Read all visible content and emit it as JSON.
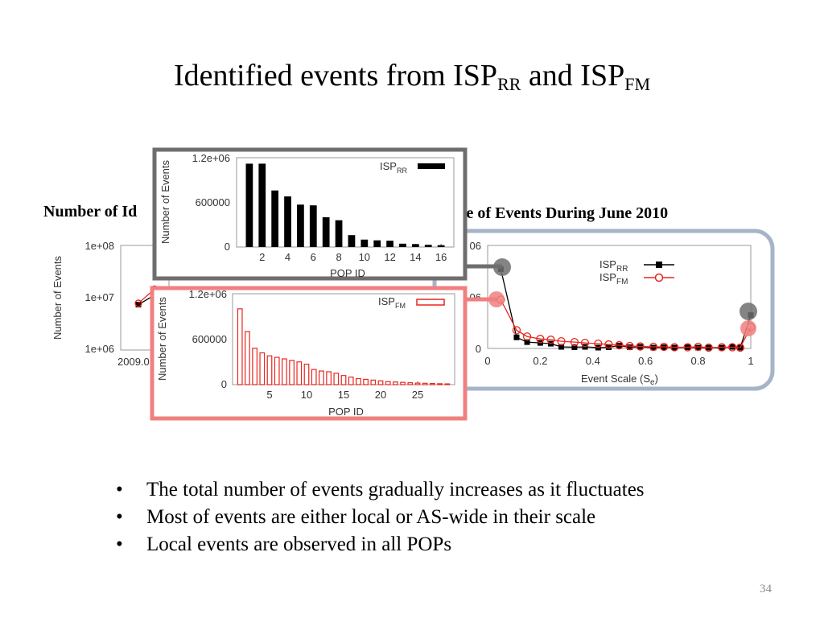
{
  "slide": {
    "title_main": "Identified events from ISP",
    "title_sub1": "RR",
    "title_and": " and ISP",
    "title_sub2": "FM",
    "left_heading": "Number of Id",
    "right_heading": "ale of Events During June 2010",
    "page_number": "34",
    "bullets": [
      "The total number of events gradually increases as it fluctuates",
      "Most of events are either local or AS-wide in their scale",
      "Local events are observed in all POPs"
    ]
  },
  "colors": {
    "gray_frame": "#6e6e6e",
    "red_frame": "#f08080",
    "blue_frame": "#a6b4c8",
    "red_series": "#e8261e",
    "black_series": "#000000"
  },
  "chart_data": [
    {
      "id": "background-timeseries",
      "type": "line",
      "ylabel": "Number of Events",
      "yscale": "log",
      "y_ticks": [
        "1e+06",
        "1e+07",
        "1e+08"
      ],
      "x_ticks": [
        "2009.0"
      ],
      "series": [
        {
          "values": [
            8500000,
            13000000
          ]
        },
        {
          "values": [
            9000000,
            17000000
          ]
        }
      ]
    },
    {
      "id": "pop-rr",
      "type": "bar",
      "legend_name": "ISP",
      "legend_sub": "RR",
      "xlabel": "POP ID",
      "ylabel": "Number of Events",
      "ylim": [
        0,
        1200000
      ],
      "y_ticks": [
        "0",
        "600000",
        "1.2e+06"
      ],
      "x_ticks": [
        "2",
        "4",
        "6",
        "8",
        "10",
        "12",
        "14",
        "16"
      ],
      "categories": [
        1,
        2,
        3,
        4,
        5,
        6,
        7,
        8,
        9,
        10,
        11,
        12,
        13,
        14,
        15,
        16
      ],
      "values": [
        1120000,
        1120000,
        760000,
        680000,
        570000,
        560000,
        400000,
        360000,
        160000,
        100000,
        90000,
        85000,
        45000,
        40000,
        30000,
        25000
      ]
    },
    {
      "id": "pop-fm",
      "type": "bar",
      "legend_name": "ISP",
      "legend_sub": "FM",
      "xlabel": "POP ID",
      "ylabel": "Number of Events",
      "ylim": [
        0,
        1200000
      ],
      "y_ticks": [
        "0",
        "600000",
        "1.2e+06"
      ],
      "x_ticks": [
        "5",
        "10",
        "15",
        "20",
        "25"
      ],
      "categories": [
        1,
        2,
        3,
        4,
        5,
        6,
        7,
        8,
        9,
        10,
        11,
        12,
        13,
        14,
        15,
        16,
        17,
        18,
        19,
        20,
        21,
        22,
        23,
        24,
        25,
        26,
        27,
        28,
        29
      ],
      "values": [
        1000000,
        700000,
        480000,
        420000,
        380000,
        360000,
        340000,
        320000,
        300000,
        270000,
        200000,
        180000,
        170000,
        150000,
        120000,
        100000,
        80000,
        70000,
        60000,
        50000,
        40000,
        35000,
        30000,
        25000,
        20000,
        18000,
        15000,
        12000,
        10000
      ]
    },
    {
      "id": "event-scale",
      "type": "line",
      "xlabel": "Event Scale (S",
      "xlabel_sub": "e",
      "x_ticks": [
        "0",
        "0.2",
        "0.4",
        "0.6",
        "0.8",
        "1"
      ],
      "y_ticks": [
        "0",
        "06",
        "06"
      ],
      "legend": [
        {
          "name": "ISP",
          "sub": "RR"
        },
        {
          "name": "ISP",
          "sub": "FM"
        }
      ],
      "x": [
        0.05,
        0.11,
        0.15,
        0.2,
        0.24,
        0.28,
        0.33,
        0.37,
        0.42,
        0.46,
        0.5,
        0.54,
        0.58,
        0.63,
        0.67,
        0.71,
        0.76,
        0.8,
        0.84,
        0.89,
        0.93,
        0.96,
        1.0
      ],
      "series": [
        {
          "values": [
            1000,
            140,
            80,
            70,
            60,
            20,
            15,
            20,
            10,
            15,
            35,
            15,
            20,
            10,
            15,
            10,
            15,
            10,
            10,
            10,
            20,
            10,
            420
          ]
        },
        {
          "values": [
            615,
            230,
            150,
            120,
            110,
            90,
            80,
            70,
            60,
            50,
            40,
            30,
            25,
            20,
            20,
            15,
            15,
            20,
            10,
            15,
            15,
            10,
            270
          ]
        }
      ]
    }
  ]
}
